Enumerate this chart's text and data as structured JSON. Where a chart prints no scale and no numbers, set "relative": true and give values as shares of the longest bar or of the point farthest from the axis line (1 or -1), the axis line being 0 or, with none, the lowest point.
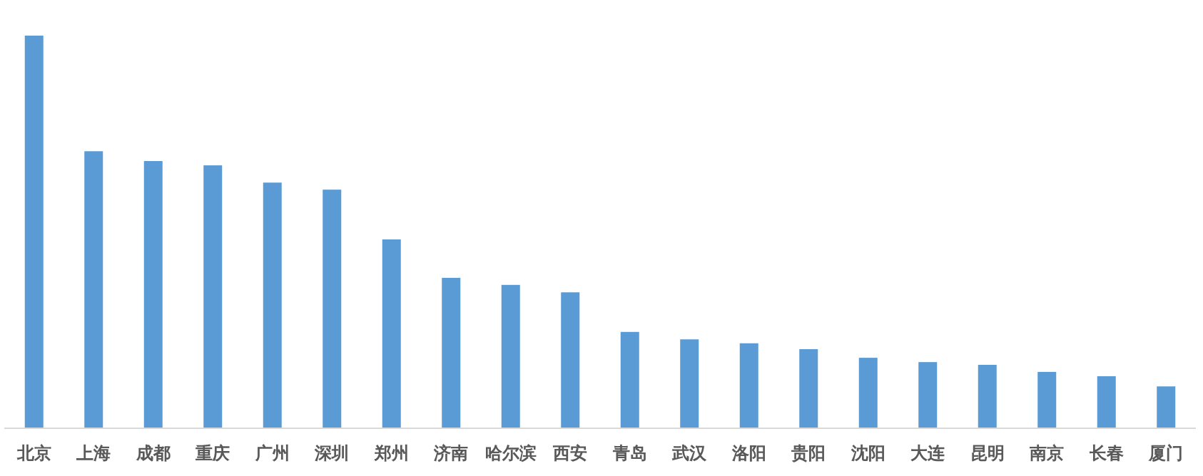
{
  "chart_data": {
    "type": "bar",
    "relative": true,
    "color": "#5b9bd5",
    "categories": [
      "北京",
      "上海",
      "成都",
      "重庆",
      "广州",
      "深圳",
      "郑州",
      "济南",
      "哈尔滨",
      "西安",
      "青岛",
      "武汉",
      "洛阳",
      "贵阳",
      "沈阳",
      "大连",
      "昆明",
      "南京",
      "长春",
      "厦门"
    ],
    "values": [
      1,
      0.705,
      0.68,
      0.669,
      0.625,
      0.607,
      0.48,
      0.382,
      0.364,
      0.345,
      0.244,
      0.225,
      0.215,
      0.2,
      0.178,
      0.167,
      0.16,
      0.142,
      0.131,
      0.105
    ]
  }
}
